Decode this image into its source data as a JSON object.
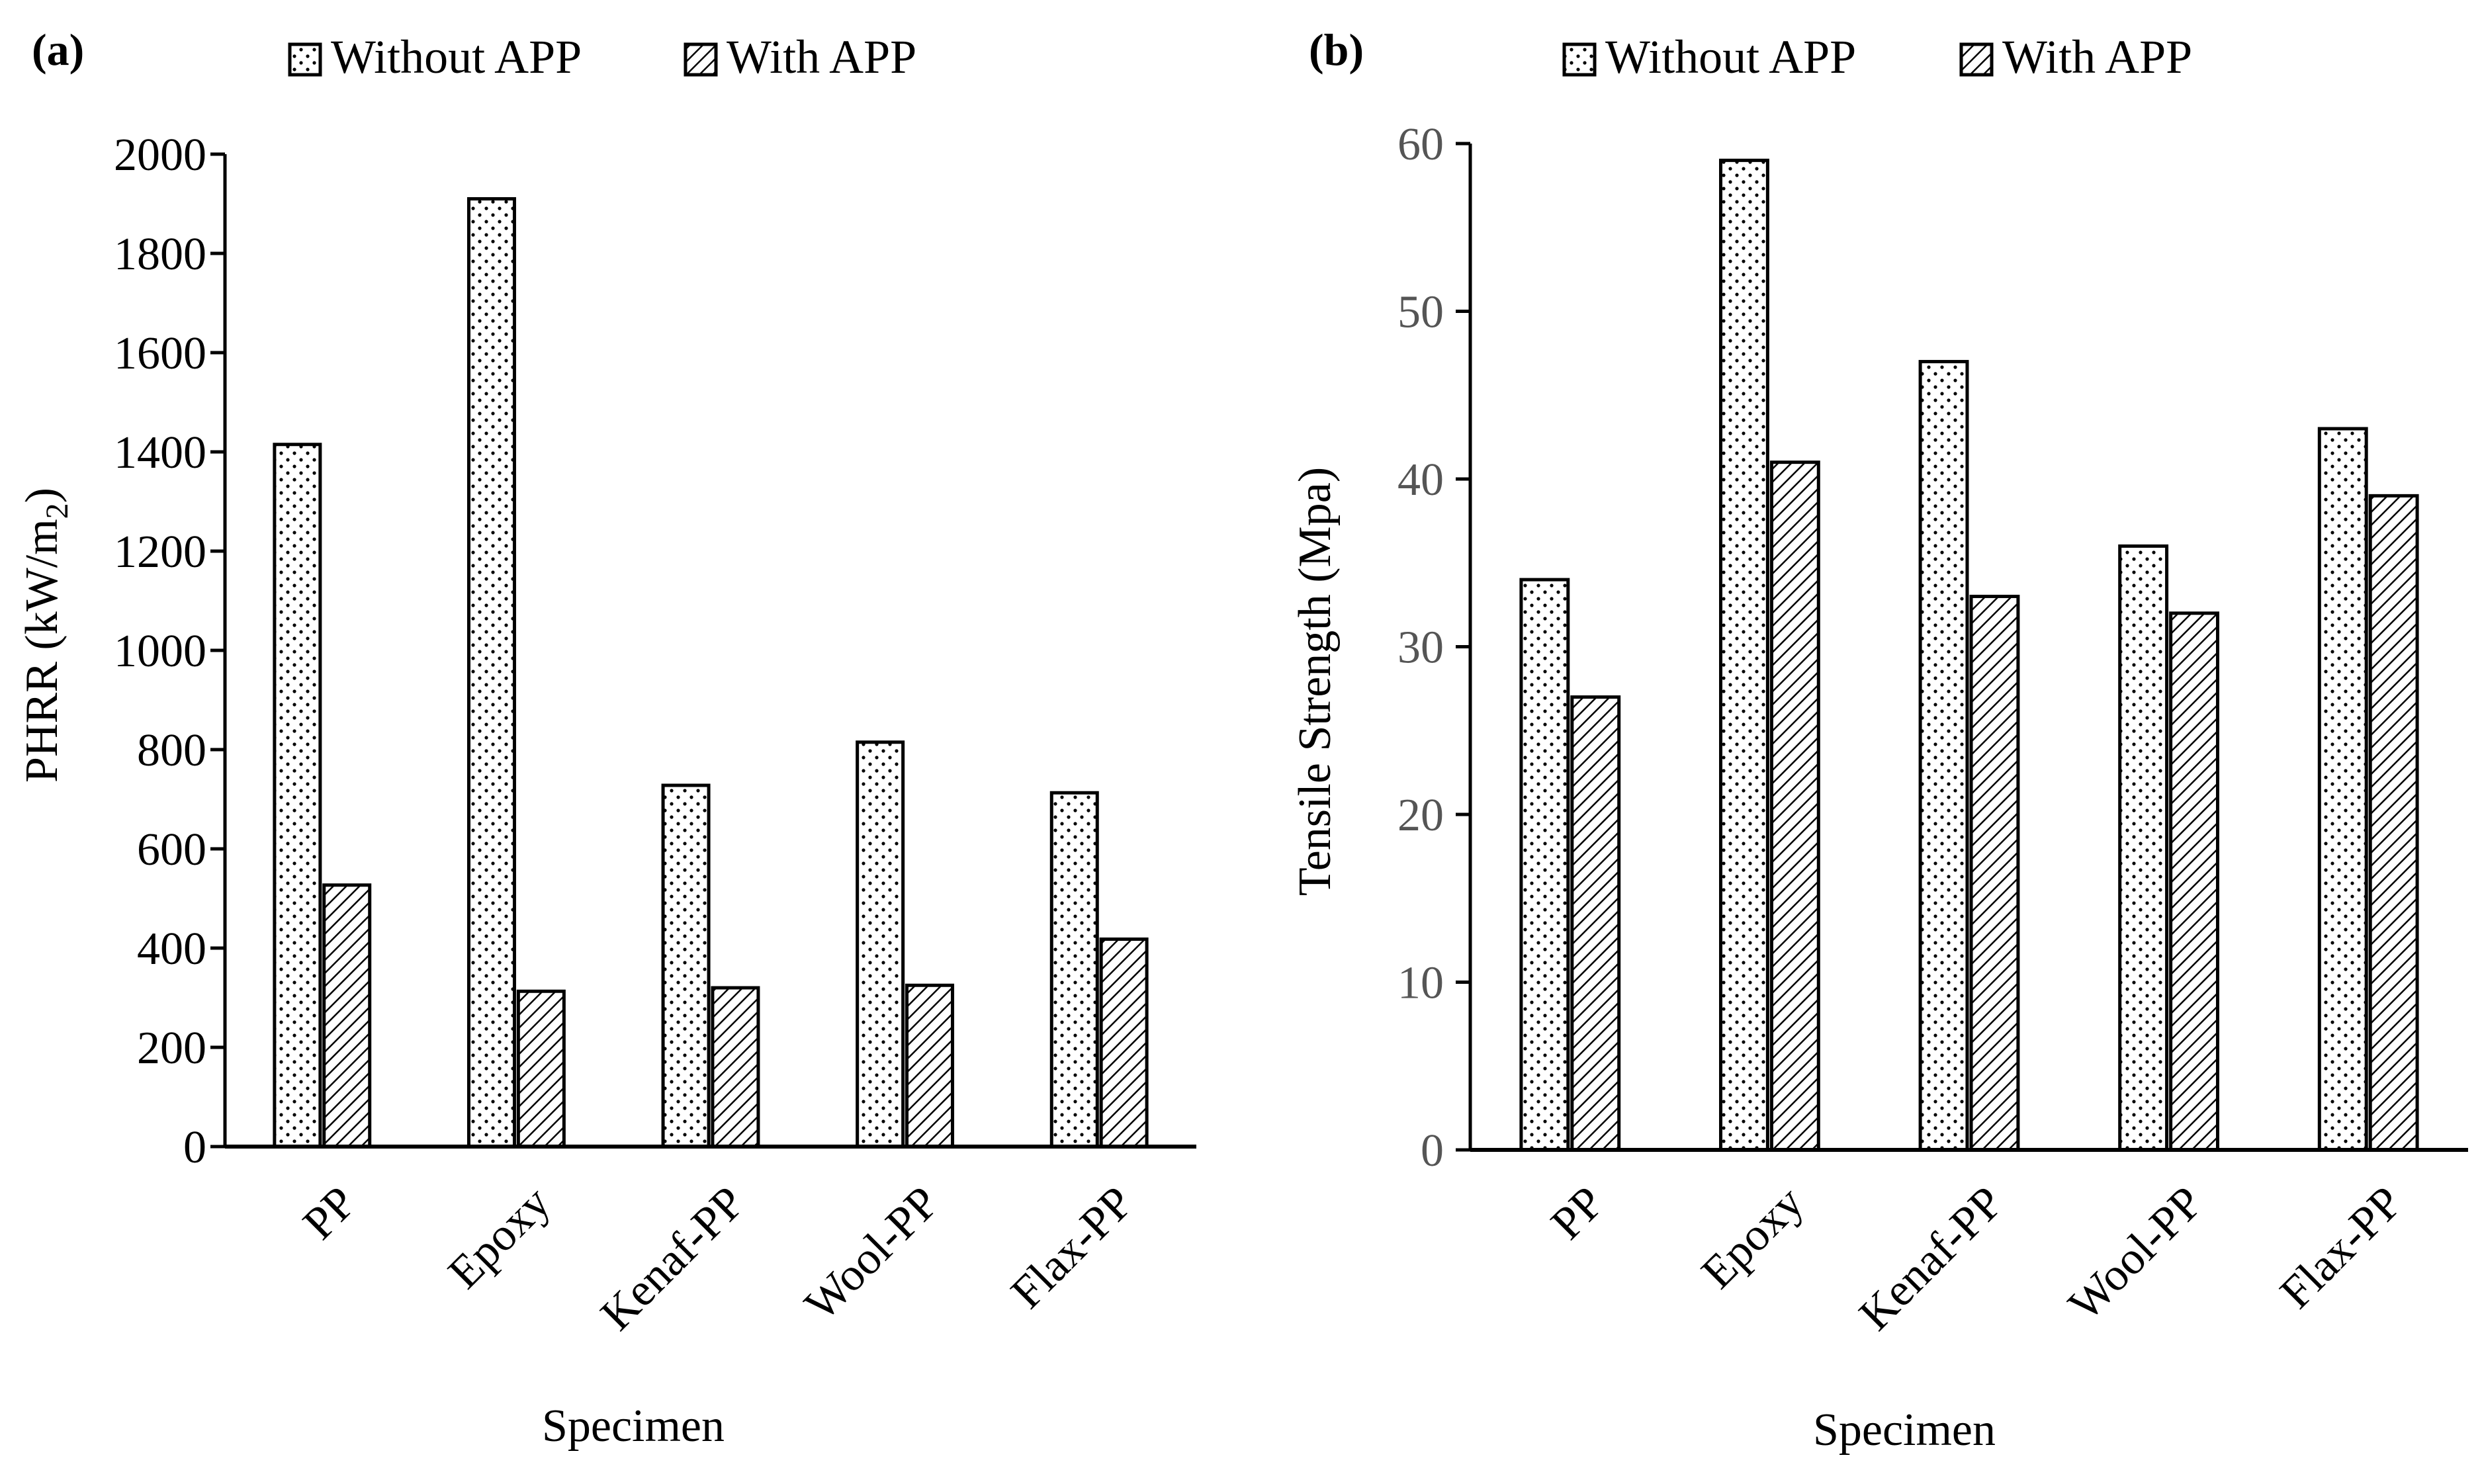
{
  "chart_data": [
    {
      "panel_label": "(a)",
      "type": "bar",
      "categories": [
        "PP",
        "Epoxy",
        "Kenaf-PP",
        "Wool-PP",
        "Flax-PP"
      ],
      "series": [
        {
          "name": "Without APP",
          "values": [
            1415,
            1910,
            728,
            815,
            713
          ]
        },
        {
          "name": "With APP",
          "values": [
            527,
            313,
            320,
            325,
            418
          ]
        }
      ],
      "xlabel": "Specimen",
      "ylabel": "PHRR (kW/m",
      "ylabel_subscript": "2",
      "ylabel_suffix": ")",
      "ylim": [
        0,
        2000
      ],
      "yticks": [
        0,
        200,
        400,
        600,
        800,
        1000,
        1200,
        1400,
        1600,
        1800,
        2000
      ],
      "legend_position": "top"
    },
    {
      "panel_label": "(b)",
      "type": "bar",
      "categories": [
        "PP",
        "Epoxy",
        "Kenaf-PP",
        "Wool-PP",
        "Flax-PP"
      ],
      "series": [
        {
          "name": "Without APP",
          "values": [
            34,
            59,
            47,
            36,
            43
          ]
        },
        {
          "name": "With APP",
          "values": [
            27,
            41,
            33,
            32,
            39
          ]
        }
      ],
      "xlabel": "Specimen",
      "ylabel": "Tensile Strength (Mpa)",
      "ylim": [
        0,
        60
      ],
      "yticks": [
        0,
        10,
        20,
        30,
        40,
        50,
        60
      ],
      "legend_position": "top"
    }
  ],
  "colors": {
    "bar_stroke": "#000000",
    "bar_fill": "#ffffff",
    "pattern_ink": "#000000",
    "tick_text_b": "#555555"
  }
}
